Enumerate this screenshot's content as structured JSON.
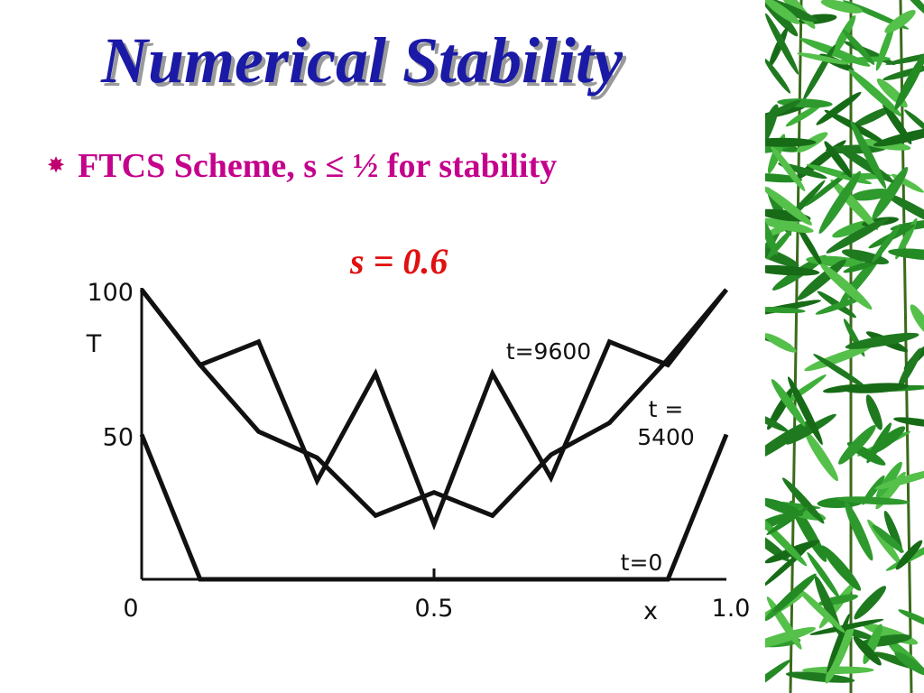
{
  "slide": {
    "title": "Numerical Stability",
    "bullet_icon": "sunburst-bullet-icon",
    "bullet_text": "FTCS Scheme, s ≤ ½ for stability",
    "parameter": "s = 0.6"
  },
  "colors": {
    "title": "#1a1aa6",
    "title_shadow": "#9a9a9a",
    "bullet": "#c4008c",
    "parameter": "#e01010",
    "curves": "#111111",
    "decoration": "bamboo-leaves"
  },
  "chart_data": {
    "type": "line",
    "title": "",
    "xlabel": "x",
    "ylabel": "T",
    "xlim": [
      0,
      1.0
    ],
    "ylim": [
      0,
      100
    ],
    "x_ticks": [
      {
        "value": 0,
        "label": "0"
      },
      {
        "value": 0.5,
        "label": "0.5"
      },
      {
        "value": 1.0,
        "label": "1.0"
      }
    ],
    "y_ticks": [
      {
        "value": 50,
        "label": "50"
      },
      {
        "value": 100,
        "label": "100"
      }
    ],
    "grid": false,
    "series": [
      {
        "name": "t = 0",
        "x": [
          0,
          0.1,
          0.2,
          0.3,
          0.4,
          0.5,
          0.6,
          0.7,
          0.8,
          0.9,
          1.0
        ],
        "y": [
          50,
          0,
          0,
          0,
          0,
          0,
          0,
          0,
          0,
          0,
          50
        ]
      },
      {
        "name": "t = 5400",
        "x": [
          0,
          0.1,
          0.2,
          0.3,
          0.4,
          0.5,
          0.6,
          0.7,
          0.8,
          0.9,
          1.0
        ],
        "y": [
          100,
          74,
          51,
          42,
          22,
          30,
          22,
          43,
          54,
          76,
          100
        ]
      },
      {
        "name": "t=9600",
        "x": [
          0,
          0.1,
          0.2,
          0.3,
          0.4,
          0.5,
          0.6,
          0.7,
          0.8,
          0.9,
          1.0
        ],
        "y": [
          100,
          74,
          82,
          34,
          71,
          19,
          71,
          35,
          82,
          74,
          100
        ]
      }
    ],
    "annotations": [
      {
        "series": "t=9600",
        "lines": [
          "t=9600"
        ]
      },
      {
        "series": "t = 5400",
        "lines": [
          "t =",
          "5400"
        ]
      },
      {
        "series": "t = 0",
        "lines": [
          "t=0"
        ]
      }
    ]
  }
}
